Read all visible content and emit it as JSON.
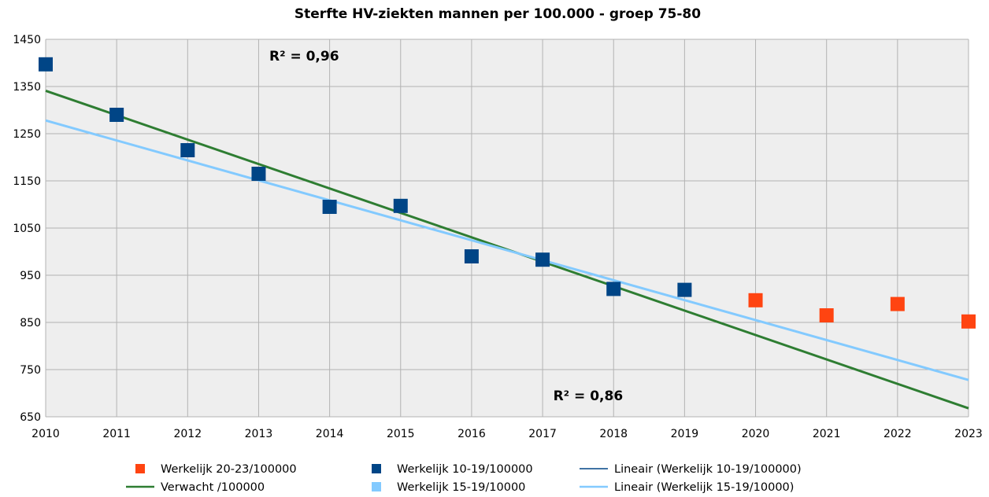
{
  "chart_data": {
    "type": "scatter",
    "title": "Sterfte HV-ziekten mannen per 100.000 - groep 75-80",
    "xlabel": "",
    "ylabel": "",
    "x_ticks": [
      "2010",
      "2011",
      "2012",
      "2013",
      "2014",
      "2015",
      "2016",
      "2017",
      "2018",
      "2019",
      "2020",
      "2021",
      "2022",
      "2023"
    ],
    "xlim": [
      2010,
      2023
    ],
    "ylim": [
      650,
      1450
    ],
    "y_ticks": [
      650,
      750,
      850,
      950,
      1050,
      1150,
      1250,
      1350,
      1450
    ],
    "grid": true,
    "plot_background": "#eeeeee",
    "legend_position": "bottom",
    "series": [
      {
        "name": "Werkelijk 20-23/100000",
        "kind": "markers",
        "color": "#ff4411",
        "x": [
          2020,
          2021,
          2022,
          2023
        ],
        "y": [
          897,
          865,
          889,
          852
        ]
      },
      {
        "name": "Werkelijk 10-19/100000",
        "kind": "markers",
        "color": "#004586",
        "x": [
          2010,
          2011,
          2012,
          2013,
          2014,
          2015,
          2016,
          2017,
          2018,
          2019
        ],
        "y": [
          1397,
          1290,
          1215,
          1165,
          1095,
          1097,
          990,
          983,
          921,
          919
        ]
      },
      {
        "name": "Lineair (Werkelijk 10-19/100000)",
        "kind": "legend-only",
        "color": "#004586",
        "x": [],
        "y": []
      },
      {
        "name": "Verwacht /100000",
        "kind": "line",
        "color": "#2e7d32",
        "x": [
          2010,
          2023
        ],
        "y": [
          1341,
          668
        ]
      },
      {
        "name": "Werkelijk 15-19/10000",
        "kind": "legend-marker",
        "color": "#83caff",
        "x": [],
        "y": []
      },
      {
        "name": "Lineair (Werkelijk 15-19/10000)",
        "kind": "line",
        "color": "#83caff",
        "x": [
          2010,
          2023
        ],
        "y": [
          1278,
          728
        ]
      }
    ],
    "annotations": [
      {
        "text": "R² = 0,96",
        "x": 2013.15,
        "y": 1405
      },
      {
        "text": "R² = 0,86",
        "x": 2017.15,
        "y": 685
      }
    ]
  }
}
